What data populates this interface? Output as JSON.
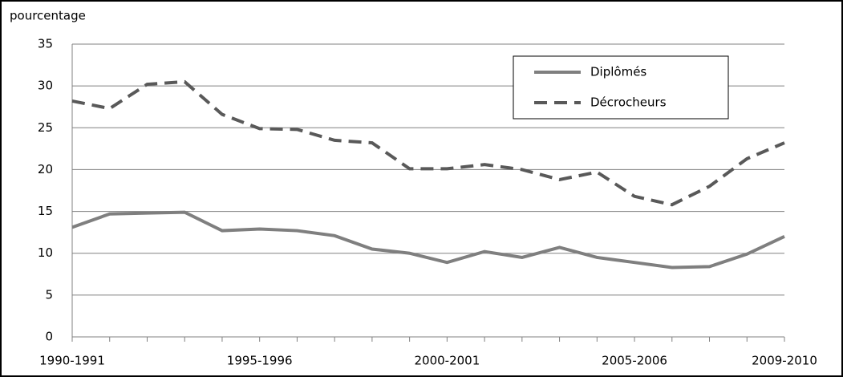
{
  "chart_data": {
    "type": "line",
    "y_label": "pourcentage",
    "categories": [
      "1990-1991",
      null,
      null,
      null,
      null,
      "1995-1996",
      null,
      null,
      null,
      null,
      "2000-2001",
      null,
      null,
      null,
      null,
      "2005-2006",
      null,
      null,
      null,
      "2009-2010"
    ],
    "series": [
      {
        "name": "Diplômés",
        "color": "#7f7f7f",
        "dashed": false,
        "values": [
          13.1,
          14.7,
          14.8,
          14.9,
          12.7,
          12.9,
          12.7,
          12.1,
          10.5,
          10.0,
          8.9,
          10.2,
          9.5,
          10.7,
          9.5,
          8.9,
          8.3,
          8.4,
          9.9,
          12.0
        ]
      },
      {
        "name": "Décrocheurs",
        "color": "#595959",
        "dashed": true,
        "values": [
          28.2,
          27.3,
          30.2,
          30.5,
          26.6,
          24.9,
          24.8,
          23.5,
          23.2,
          20.1,
          20.1,
          20.6,
          20.0,
          18.8,
          19.7,
          16.8,
          15.8,
          18.0,
          21.3,
          23.2
        ]
      }
    ],
    "ylim": [
      0,
      35
    ],
    "yticks": [
      0,
      5,
      10,
      15,
      20,
      25,
      30,
      35
    ],
    "grid": true,
    "legend": "top-right"
  }
}
